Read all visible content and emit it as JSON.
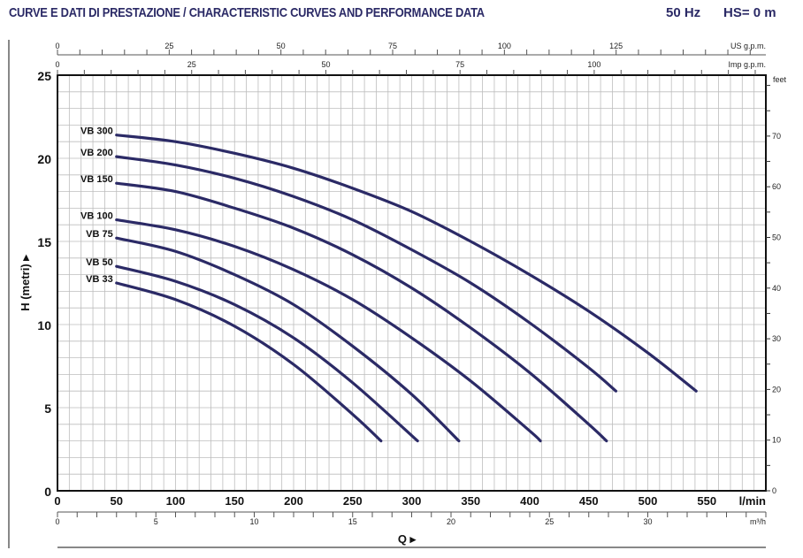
{
  "header": {
    "title": "CURVE E DATI DI PRESTAZIONE / CHARACTERISTIC CURVES AND PERFORMANCE DATA",
    "frequency": "50 Hz",
    "suction_head": "HS= 0 m"
  },
  "chart_data": {
    "type": "line",
    "xlabel": "Q",
    "ylabel": "H (metri)",
    "x_unit": "l/min",
    "xlim": [
      0,
      600
    ],
    "ylim": [
      0,
      25
    ],
    "x_ticks": [
      0,
      50,
      100,
      150,
      200,
      250,
      300,
      350,
      400,
      450,
      500,
      550
    ],
    "y_ticks": [
      0,
      5,
      10,
      15,
      20,
      25
    ],
    "grid": true,
    "line_color": "#2b2a66",
    "secondary_axes": {
      "us_gpm": {
        "label": "US g.p.m.",
        "ticks": [
          0,
          25,
          50,
          75,
          100,
          125
        ]
      },
      "imp_gpm": {
        "label": "Imp g.p.m.",
        "ticks": [
          0,
          25,
          50,
          75,
          100
        ]
      },
      "m3h": {
        "label": "m³/h",
        "ticks": [
          0,
          5,
          10,
          15,
          20,
          25,
          30
        ]
      },
      "feet": {
        "label": "feet",
        "ticks": [
          0,
          10,
          20,
          30,
          40,
          50,
          60,
          70
        ]
      }
    },
    "series": [
      {
        "name": "VB 300",
        "x": [
          50,
          100,
          150,
          200,
          250,
          300,
          350,
          400,
          450,
          500,
          541
        ],
        "y": [
          21.4,
          21.0,
          20.3,
          19.4,
          18.2,
          16.8,
          15.0,
          13.0,
          10.8,
          8.3,
          6.0
        ]
      },
      {
        "name": "VB 200",
        "x": [
          50,
          100,
          150,
          200,
          250,
          300,
          350,
          400,
          450,
          473
        ],
        "y": [
          20.1,
          19.6,
          18.8,
          17.7,
          16.3,
          14.5,
          12.5,
          10.1,
          7.4,
          6.0
        ]
      },
      {
        "name": "VB 150",
        "x": [
          50,
          100,
          150,
          200,
          250,
          300,
          350,
          400,
          450,
          465
        ],
        "y": [
          18.5,
          18.0,
          17.0,
          15.8,
          14.2,
          12.2,
          9.8,
          7.1,
          4.0,
          3.0
        ]
      },
      {
        "name": "VB 100",
        "x": [
          50,
          100,
          150,
          200,
          250,
          300,
          350,
          400,
          409
        ],
        "y": [
          16.3,
          15.7,
          14.7,
          13.3,
          11.5,
          9.2,
          6.6,
          3.6,
          3.0
        ]
      },
      {
        "name": "VB 75",
        "x": [
          50,
          100,
          150,
          200,
          250,
          300,
          340
        ],
        "y": [
          15.2,
          14.4,
          13.0,
          11.2,
          8.7,
          5.8,
          3.0
        ]
      },
      {
        "name": "VB 50",
        "x": [
          50,
          100,
          150,
          200,
          250,
          305
        ],
        "y": [
          13.5,
          12.6,
          11.2,
          9.2,
          6.5,
          3.0
        ]
      },
      {
        "name": "VB 33",
        "x": [
          50,
          100,
          150,
          200,
          250,
          274
        ],
        "y": [
          12.5,
          11.5,
          9.9,
          7.6,
          4.6,
          3.0
        ]
      }
    ]
  }
}
